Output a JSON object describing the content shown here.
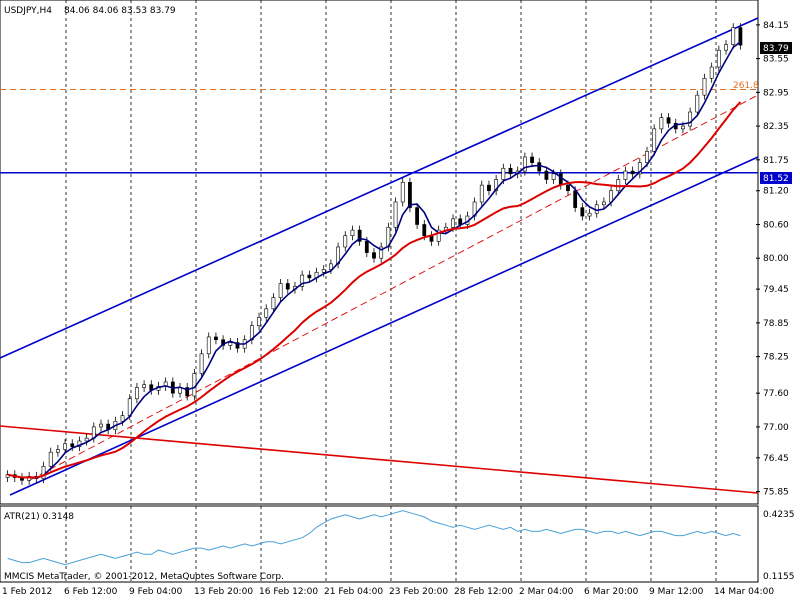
{
  "header": {
    "symbol_label": "USDJPY,H4",
    "ohlc": "84.06 84.06 83.53 83.79"
  },
  "sub_window": {
    "label": "ATR(21) 0.3148",
    "ticks": [
      "0.4235",
      "0.1155"
    ]
  },
  "watermark": "MMCIS MetaTrader, © 2001-2012, MetaQuotes Software Corp.",
  "price_labels": {
    "current": "83.79",
    "level": "81.52",
    "fib": "261.8"
  },
  "colors": {
    "grid": "#000000",
    "channel": "#0000cc",
    "ma_fast": "#000080",
    "ma_slow": "#dd0000",
    "trend_down": "#dd0000",
    "fib_level": "#e07020",
    "atr": "#4aa0d8",
    "candle_bull": "#ffffff",
    "candle_bear": "#000000",
    "label_bg": "#0000cc"
  },
  "chart_data": {
    "type": "candlestick",
    "symbol": "USDJPY",
    "timeframe": "H4",
    "x_tick_labels": [
      "1 Feb 2012",
      "6 Feb 12:00",
      "9 Feb 04:00",
      "13 Feb 20:00",
      "16 Feb 12:00",
      "21 Feb 04:00",
      "23 Feb 20:00",
      "28 Feb 12:00",
      "2 Mar 04:00",
      "6 Mar 20:00",
      "9 Mar 12:00",
      "14 Mar 04:00"
    ],
    "y_tick_labels": [
      "84.15",
      "83.55",
      "82.95",
      "82.35",
      "81.75",
      "81.20",
      "80.60",
      "80.00",
      "79.45",
      "78.85",
      "78.25",
      "77.60",
      "77.00",
      "76.45",
      "75.85"
    ],
    "ylim": [
      75.7,
      84.45
    ],
    "closes": [
      76.15,
      76.1,
      76.05,
      76.12,
      76.08,
      76.3,
      76.55,
      76.6,
      76.7,
      76.65,
      76.75,
      76.8,
      77.0,
      77.05,
      76.95,
      77.1,
      77.2,
      77.5,
      77.7,
      77.75,
      77.65,
      77.72,
      77.8,
      77.6,
      77.7,
      77.55,
      77.95,
      78.3,
      78.6,
      78.55,
      78.45,
      78.5,
      78.4,
      78.55,
      78.8,
      78.95,
      79.1,
      79.3,
      79.55,
      79.45,
      79.5,
      79.7,
      79.65,
      79.75,
      79.8,
      79.9,
      80.2,
      80.4,
      80.5,
      80.3,
      80.1,
      80.0,
      80.2,
      80.55,
      81.0,
      81.35,
      80.9,
      80.6,
      80.4,
      80.3,
      80.5,
      80.55,
      80.7,
      80.6,
      80.75,
      81.0,
      81.3,
      81.2,
      81.4,
      81.6,
      81.5,
      81.55,
      81.8,
      81.7,
      81.55,
      81.4,
      81.5,
      81.3,
      81.2,
      80.9,
      80.75,
      80.8,
      80.95,
      81.0,
      81.2,
      81.4,
      81.55,
      81.5,
      81.7,
      81.9,
      82.3,
      82.5,
      82.4,
      82.3,
      82.35,
      82.6,
      82.9,
      83.2,
      83.4,
      83.7,
      83.8,
      84.1,
      83.79
    ],
    "atr_values": [
      0.2,
      0.19,
      0.18,
      0.18,
      0.19,
      0.2,
      0.19,
      0.18,
      0.17,
      0.18,
      0.19,
      0.2,
      0.21,
      0.22,
      0.21,
      0.2,
      0.21,
      0.22,
      0.23,
      0.22,
      0.22,
      0.24,
      0.23,
      0.22,
      0.23,
      0.24,
      0.25,
      0.25,
      0.24,
      0.25,
      0.26,
      0.25,
      0.26,
      0.27,
      0.26,
      0.27,
      0.28,
      0.28,
      0.27,
      0.28,
      0.29,
      0.3,
      0.32,
      0.35,
      0.37,
      0.39,
      0.4,
      0.41,
      0.4,
      0.39,
      0.4,
      0.41,
      0.4,
      0.41,
      0.42,
      0.43,
      0.42,
      0.41,
      0.4,
      0.38,
      0.37,
      0.36,
      0.35,
      0.36,
      0.35,
      0.34,
      0.35,
      0.36,
      0.35,
      0.34,
      0.35,
      0.33,
      0.34,
      0.33,
      0.33,
      0.34,
      0.33,
      0.32,
      0.33,
      0.34,
      0.34,
      0.33,
      0.32,
      0.33,
      0.33,
      0.32,
      0.33,
      0.32,
      0.31,
      0.32,
      0.33,
      0.33,
      0.32,
      0.31,
      0.31,
      0.32,
      0.33,
      0.32,
      0.33,
      0.32,
      0.31,
      0.32,
      0.31
    ],
    "atr_ylim": [
      0.1155,
      0.4235
    ],
    "horizontal_level": 81.52,
    "fib_level": 83.0,
    "fib_label": "261.8"
  }
}
